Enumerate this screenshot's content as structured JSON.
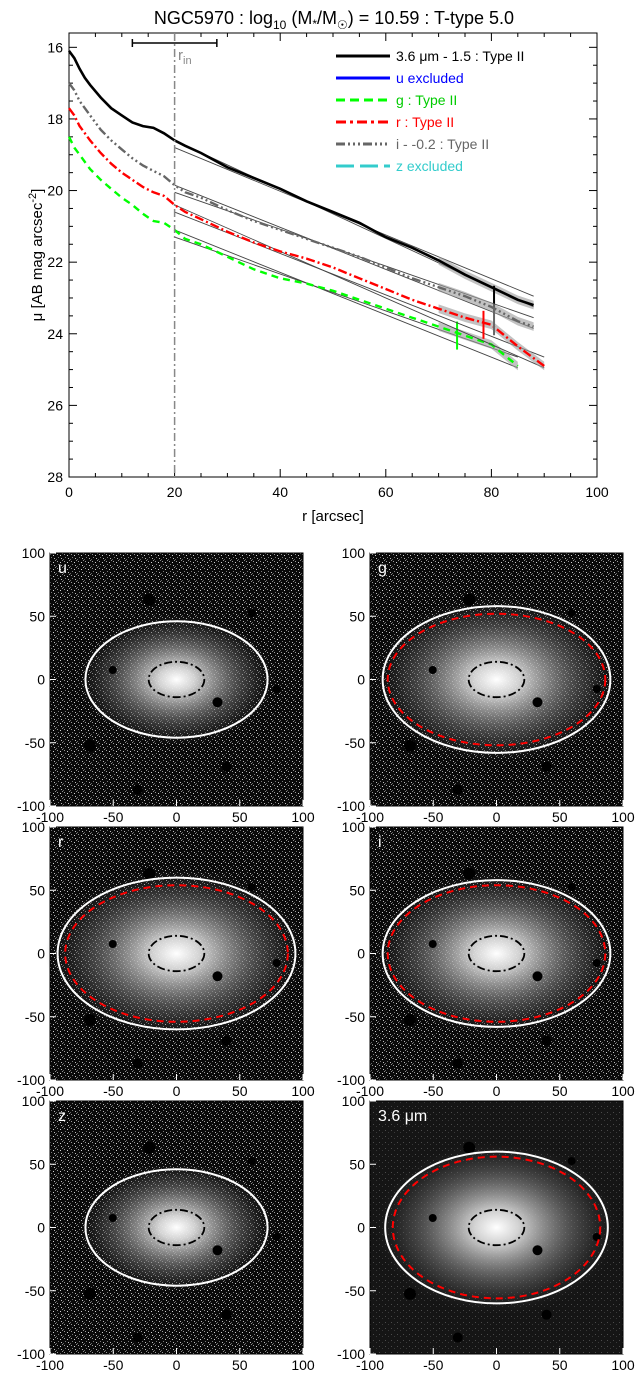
{
  "chart_data": [
    {
      "type": "line",
      "title": "NGC5970 : log10 (M*/M☉) = 10.59 : T-type 5.0",
      "title_parts": {
        "a": "NGC5970 : log",
        "b": "10",
        "c": " (M",
        "d": "*",
        "e": "/M",
        "f": "☉",
        "g": ") = 10.59 : T-type 5.0"
      },
      "xlabel": "r [arcsec]",
      "ylabel_parts": {
        "a": "μ [AB mag arcsec",
        "b": "-2",
        "c": "]"
      },
      "xlim": [
        0,
        100
      ],
      "ylim": [
        28,
        15.6
      ],
      "y_inverted": true,
      "x_ticks": [
        "0",
        "20",
        "40",
        "60",
        "80",
        "100"
      ],
      "y_ticks": [
        "16",
        "18",
        "20",
        "22",
        "24",
        "26",
        "28"
      ],
      "annotation_rin": {
        "text_a": "r",
        "text_b": "in",
        "x": 20,
        "err": [
          12,
          28
        ]
      },
      "legend_position": "top-right",
      "series": [
        {
          "name": "3.6 μm - 1.5 : Type II",
          "color": "#000000",
          "dash": "",
          "x": [
            0,
            1,
            2,
            3,
            4,
            6,
            8,
            10,
            12,
            14,
            16,
            18,
            20,
            22,
            25,
            30,
            35,
            40,
            45,
            50,
            55,
            60,
            65,
            70,
            75,
            80,
            85,
            88
          ],
          "y": [
            16.1,
            16.3,
            16.6,
            16.85,
            17.05,
            17.4,
            17.7,
            17.9,
            18.1,
            18.2,
            18.25,
            18.4,
            18.6,
            18.75,
            18.95,
            19.35,
            19.65,
            19.95,
            20.3,
            20.6,
            20.9,
            21.3,
            21.6,
            21.95,
            22.35,
            22.7,
            23.05,
            23.2
          ],
          "break_x": 80.5
        },
        {
          "name": "u excluded",
          "color": "#0000ff",
          "dash": "",
          "x": [],
          "y": []
        },
        {
          "name": "g : Type II",
          "color": "#00ff00",
          "dash": "7,5",
          "x": [
            0,
            1,
            2,
            4,
            6,
            8,
            10,
            12,
            14,
            16,
            18,
            20,
            22,
            25,
            30,
            35,
            40,
            45,
            50,
            55,
            60,
            65,
            70,
            75,
            80,
            85
          ],
          "y": [
            18.5,
            18.8,
            19.0,
            19.4,
            19.7,
            19.95,
            20.2,
            20.4,
            20.65,
            20.85,
            20.9,
            21.1,
            21.35,
            21.5,
            21.85,
            22.2,
            22.45,
            22.6,
            22.8,
            23.05,
            23.3,
            23.55,
            23.8,
            24.05,
            24.3,
            24.9
          ],
          "break_x": 73.5
        },
        {
          "name": "r : Type II",
          "color": "#ff0000",
          "dash": "9,3,2,3",
          "x": [
            0,
            1,
            2,
            4,
            6,
            8,
            10,
            12,
            14,
            16,
            18,
            20,
            22,
            25,
            30,
            35,
            40,
            45,
            50,
            55,
            60,
            65,
            70,
            75,
            80,
            85,
            90
          ],
          "y": [
            17.7,
            17.9,
            18.2,
            18.6,
            18.95,
            19.25,
            19.5,
            19.7,
            19.9,
            20.05,
            20.15,
            20.4,
            20.6,
            20.8,
            21.15,
            21.45,
            21.7,
            21.9,
            22.15,
            22.45,
            22.75,
            23.05,
            23.3,
            23.55,
            23.75,
            24.35,
            24.9
          ],
          "break_x": 78.5
        },
        {
          "name": "i - -0.2 : Type II",
          "color": "#666666",
          "dash": "9,3,2,3,2,3,2,3",
          "x": [
            0,
            1,
            2,
            4,
            6,
            8,
            10,
            12,
            14,
            16,
            18,
            20,
            22,
            25,
            30,
            35,
            40,
            45,
            50,
            55,
            60,
            65,
            70,
            75,
            80,
            85,
            88
          ],
          "y": [
            17.0,
            17.2,
            17.5,
            17.9,
            18.3,
            18.6,
            18.85,
            19.1,
            19.3,
            19.45,
            19.6,
            19.85,
            20.05,
            20.2,
            20.55,
            20.85,
            21.1,
            21.35,
            21.6,
            21.85,
            22.15,
            22.45,
            22.7,
            22.95,
            23.25,
            23.65,
            23.8
          ],
          "break_x": 80.5
        },
        {
          "name": "z excluded",
          "color": "#33cccc",
          "dash": "",
          "x": [],
          "y": []
        }
      ]
    },
    {
      "type": "image-panels",
      "panels": [
        {
          "label": "u",
          "outer_ellipse": true,
          "break_ellipse": false
        },
        {
          "label": "g",
          "outer_ellipse": true,
          "break_ellipse": true
        },
        {
          "label": "r",
          "outer_ellipse": true,
          "break_ellipse": true
        },
        {
          "label": "i",
          "outer_ellipse": true,
          "break_ellipse": true
        },
        {
          "label": "z",
          "outer_ellipse": true,
          "break_ellipse": false
        },
        {
          "label": "3.6 μm",
          "outer_ellipse": true,
          "break_ellipse": true
        }
      ],
      "axis_range": [
        -100,
        100
      ],
      "x_ticks": [
        "-100",
        "-50",
        "0",
        "50",
        "100"
      ],
      "y_ticks": [
        "100",
        "50",
        "0",
        "-50",
        "-100"
      ]
    }
  ]
}
